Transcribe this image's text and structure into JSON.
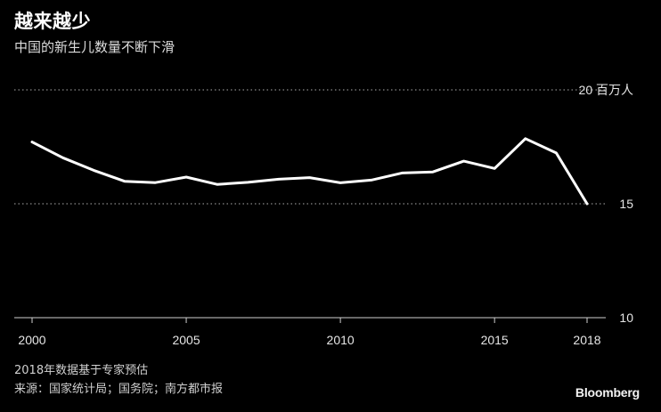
{
  "header": {
    "title": "越来越少",
    "subtitle": "中国的新生儿数量不断下滑"
  },
  "footer": {
    "note": "2018年数据基于专家预估",
    "source": "来源：国家统计局；国务院；南方都市报",
    "brand": "Bloomberg"
  },
  "y_unit_label": "20 百万人",
  "colors": {
    "background": "#000000",
    "line": "#ffffff",
    "grid": "#8a8a8a"
  },
  "chart_data": {
    "type": "line",
    "title": "越来越少",
    "subtitle": "中国的新生儿数量不断下滑",
    "xlabel": "",
    "ylabel": "",
    "unit": "百万人",
    "xlim": [
      2000,
      2018
    ],
    "ylim": [
      10,
      20
    ],
    "x_ticks": [
      "2000",
      "2005",
      "2010",
      "2015",
      "2018"
    ],
    "y_ticks": [
      "10",
      "15",
      "20"
    ],
    "grid": "horizontal dotted",
    "series": [
      {
        "x": [
          2000,
          2001,
          2002,
          2003,
          2004,
          2005,
          2006,
          2007,
          2008,
          2009,
          2010,
          2011,
          2012,
          2013,
          2014,
          2015,
          2016,
          2017,
          2018
        ],
        "values": [
          17.71,
          17.02,
          16.47,
          15.99,
          15.93,
          16.17,
          15.85,
          15.94,
          16.08,
          16.15,
          15.92,
          16.04,
          16.35,
          16.4,
          16.87,
          16.55,
          17.86,
          17.23,
          15.0
        ]
      }
    ]
  }
}
